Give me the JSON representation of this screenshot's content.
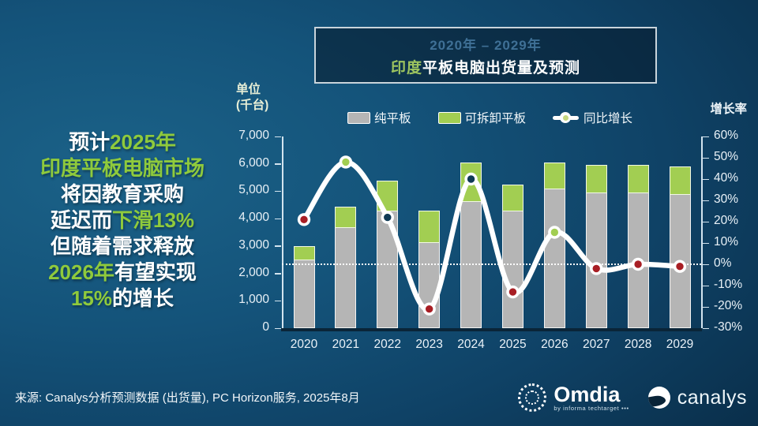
{
  "title_box": {
    "range": "2020年 – 2029年",
    "highlight": "印度",
    "rest": "平板电脑出货量及预测"
  },
  "annotation": {
    "lines": [
      [
        {
          "text": "预计",
          "color": "white"
        },
        {
          "text": "2025年",
          "color": "green"
        }
      ],
      [
        {
          "text": "印度平板电脑市场",
          "color": "green"
        }
      ],
      [
        {
          "text": "将因教育采购",
          "color": "white"
        }
      ],
      [
        {
          "text": "延迟而",
          "color": "white"
        },
        {
          "text": "下滑13%",
          "color": "green"
        }
      ],
      [
        {
          "text": "但随着需求释放",
          "color": "white"
        }
      ],
      [
        {
          "text": "2026年",
          "color": "green"
        },
        {
          "text": "有望实现",
          "color": "white"
        }
      ],
      [
        {
          "text": "15%",
          "color": "green"
        },
        {
          "text": "的增长",
          "color": "white"
        }
      ]
    ]
  },
  "chart_data": {
    "type": "bar",
    "subtype": "stacked-bars-with-growth-line",
    "title": "印度平板电脑出货量及预测 (2020年 – 2029年)",
    "categories": [
      "2020",
      "2021",
      "2022",
      "2023",
      "2024",
      "2025",
      "2026",
      "2027",
      "2028",
      "2029"
    ],
    "series": [
      {
        "name": "纯平板",
        "type": "bar",
        "color": "#b5b5b5",
        "values": [
          2500,
          3700,
          4300,
          3150,
          4650,
          4300,
          5100,
          4950,
          4950,
          4900
        ]
      },
      {
        "name": "可拆卸平板",
        "type": "bar",
        "color": "#a2ce52",
        "values": [
          500,
          750,
          1100,
          1150,
          1400,
          950,
          950,
          1000,
          1000,
          1000
        ]
      },
      {
        "name": "同比增长",
        "type": "line",
        "axis": "right",
        "unit": "%",
        "color": "#ffffff",
        "values": [
          21,
          48,
          22,
          -21,
          40,
          -13,
          15,
          -2,
          0,
          -1
        ],
        "marker_colors": [
          "#a81e24",
          "#a2ce52",
          "open",
          "#a81e24",
          "open",
          "#a81e24",
          "#a2ce52",
          "#a81e24",
          "#a81e24",
          "#a81e24"
        ]
      }
    ],
    "stacked_totals": [
      3000,
      4450,
      5400,
      4300,
      6050,
      5250,
      6050,
      5950,
      5950,
      5900
    ],
    "left_axis": {
      "label_line1": "单位",
      "label_line2": "(千台)",
      "min": 0,
      "max": 7000,
      "step": 1000,
      "tick_labels": [
        "7,000",
        "6,000",
        "5,000",
        "4,000",
        "3,000",
        "2,000",
        "1,000",
        "0"
      ]
    },
    "right_axis": {
      "label": "增长率",
      "min": -30,
      "max": 60,
      "step": 10,
      "tick_labels": [
        "60%",
        "50%",
        "40%",
        "30%",
        "20%",
        "10%",
        "0%",
        "-10%",
        "-20%",
        "-30%"
      ],
      "zero_line": "dotted"
    },
    "legend": [
      "纯平板",
      "可拆卸平板",
      "同比增长"
    ],
    "legend_position": "top",
    "grid": "off"
  },
  "footer": {
    "source": "来源: Canalys分析预测数据 (出货量), PC Horizon服务, 2025年8月",
    "omdia_label": "Omdia",
    "omdia_sub": "by informa techtarget •••",
    "canalys_label": "canalys"
  }
}
